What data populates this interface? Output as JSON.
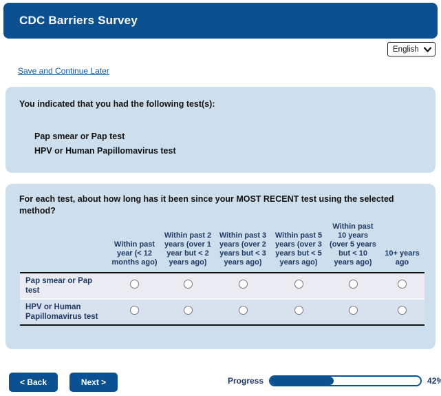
{
  "header": {
    "title": "CDC Barriers Survey"
  },
  "language": {
    "selected": "English"
  },
  "links": {
    "save_continue": "Save and Continue Later"
  },
  "intro": {
    "prompt": "You indicated that you had the following test(s):",
    "tests": [
      "Pap smear or Pap test",
      "HPV or Human Papillomavirus test"
    ]
  },
  "matrix": {
    "question": "For each test, about how long has it been since your MOST RECENT test using the selected method?",
    "columns": [
      "Within past year (< 12 months ago)",
      "Within past 2 years (over 1 year but < 2 years ago)",
      "Within past 3 years (over 2 years but < 3 years ago)",
      "Within past 5 years (over 3 years but < 5 years ago)",
      "Within past 10 years (over 5 years but < 10 years ago)",
      "10+ years ago"
    ],
    "rows": [
      "Pap smear or Pap test",
      "HPV or Human Papillomavirus test"
    ]
  },
  "footer": {
    "back_label": "< Back",
    "next_label": "Next >",
    "progress_label": "Progress",
    "progress_percent": 42,
    "progress_text": "42%"
  },
  "colors": {
    "header_blue": "#0b5191",
    "panel_blue": "#cddeed",
    "row_stripe_light": "#eaecf2",
    "row_stripe_blue": "#d8e1ee",
    "navy_text": "#1f3864",
    "link_blue": "#0f5ba5"
  },
  "icons": {
    "chevron_down": "chevron-down-icon"
  }
}
